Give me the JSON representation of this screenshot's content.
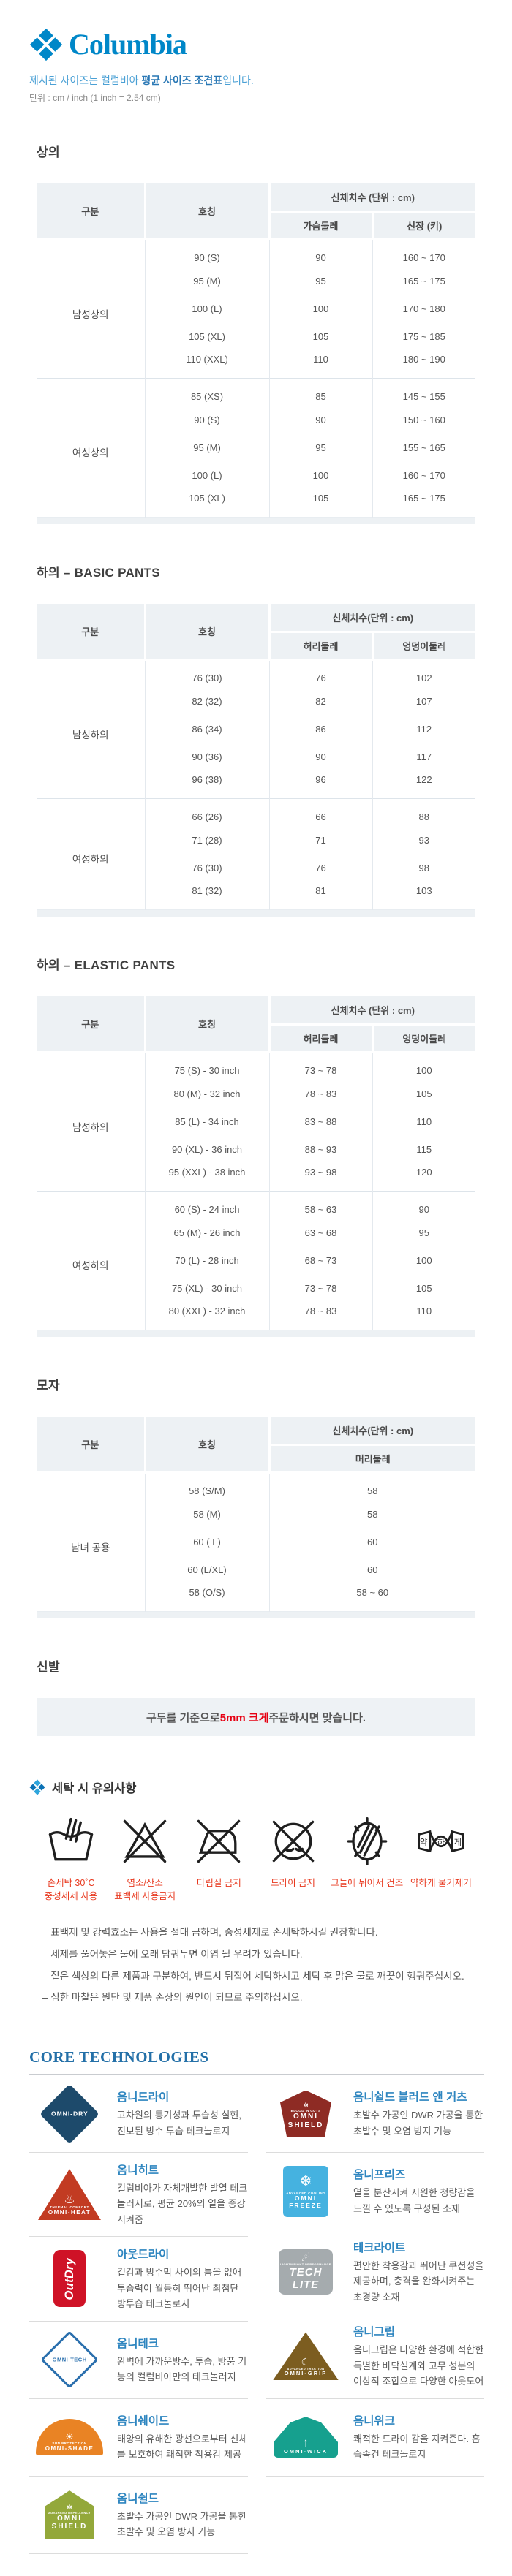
{
  "header": {
    "brand": "Columbia",
    "intro": {
      "pre": "제시된 사이즈는 컬럼비아 ",
      "bold": "평균 사이즈 조견표",
      "post": "입니다."
    },
    "unit_note": "단위 : cm / inch (1 inch = 2.54 cm)"
  },
  "tables": {
    "tops": {
      "section_title": "상의",
      "col_headers": {
        "group": "구분",
        "size": "호칭",
        "span": "신체치수 (단위 : cm)"
      },
      "sub_headers": [
        "가슴둘레",
        "신장 (키)"
      ],
      "groups": [
        {
          "label": "남성상의",
          "rows": [
            [
              "90 (S)",
              "90",
              "160 ~ 170"
            ],
            [
              "95 (M)",
              "95",
              "165 ~ 175"
            ],
            [
              "100 (L)",
              "100",
              "170 ~ 180"
            ],
            [
              "105 (XL)",
              "105",
              "175 ~ 185"
            ],
            [
              "110 (XXL)",
              "110",
              "180 ~ 190"
            ]
          ]
        },
        {
          "label": "여성상의",
          "rows": [
            [
              "85 (XS)",
              "85",
              "145 ~ 155"
            ],
            [
              "90 (S)",
              "90",
              "150 ~ 160"
            ],
            [
              "95 (M)",
              "95",
              "155 ~ 165"
            ],
            [
              "100 (L)",
              "100",
              "160 ~ 170"
            ],
            [
              "105 (XL)",
              "105",
              "165 ~ 175"
            ]
          ]
        }
      ]
    },
    "basic_pants": {
      "section_title": "하의 – BASIC PANTS",
      "col_headers": {
        "group": "구분",
        "size": "호칭",
        "span": "신체치수(단위 : cm)"
      },
      "sub_headers": [
        "허리둘레",
        "엉덩이둘레"
      ],
      "groups": [
        {
          "label": "남성하의",
          "rows": [
            [
              "76 (30)",
              "76",
              "102"
            ],
            [
              "82 (32)",
              "82",
              "107"
            ],
            [
              "86 (34)",
              "86",
              "112"
            ],
            [
              "90 (36)",
              "90",
              "117"
            ],
            [
              "96 (38)",
              "96",
              "122"
            ]
          ]
        },
        {
          "label": "여성하의",
          "rows": [
            [
              "66 (26)",
              "66",
              "88"
            ],
            [
              "71 (28)",
              "71",
              "93"
            ],
            [
              "76 (30)",
              "76",
              "98"
            ],
            [
              "81 (32)",
              "81",
              "103"
            ]
          ]
        }
      ]
    },
    "elastic_pants": {
      "section_title": "하의 – ELASTIC PANTS",
      "col_headers": {
        "group": "구분",
        "size": "호칭",
        "span": "신체치수 (단위 : cm)"
      },
      "sub_headers": [
        "허리둘레",
        "엉덩이둘레"
      ],
      "groups": [
        {
          "label": "남성하의",
          "rows": [
            [
              "75 (S) - 30 inch",
              "73 ~ 78",
              "100"
            ],
            [
              "80 (M) - 32 inch",
              "78 ~ 83",
              "105"
            ],
            [
              "85 (L) - 34 inch",
              "83 ~ 88",
              "110"
            ],
            [
              "90 (XL) - 36 inch",
              "88 ~ 93",
              "115"
            ],
            [
              "95 (XXL) - 38 inch",
              "93 ~ 98",
              "120"
            ]
          ]
        },
        {
          "label": "여성하의",
          "rows": [
            [
              "60 (S) - 24 inch",
              "58 ~ 63",
              "90"
            ],
            [
              "65 (M) - 26 inch",
              "63 ~ 68",
              "95"
            ],
            [
              "70 (L) - 28 inch",
              "68 ~ 73",
              "100"
            ],
            [
              "75 (XL) - 30 inch",
              "73 ~ 78",
              "105"
            ],
            [
              "80 (XXL) - 32 inch",
              "78 ~ 83",
              "110"
            ]
          ]
        }
      ]
    },
    "hats": {
      "section_title": "모자",
      "col_headers": {
        "group": "구분",
        "size": "호칭",
        "span": "신체치수(단위 : cm)"
      },
      "sub_headers": [
        "머리둘레"
      ],
      "groups": [
        {
          "label": "남녀 공용",
          "rows": [
            [
              "58 (S/M)",
              "58"
            ],
            [
              "58 (M)",
              "58"
            ],
            [
              "60 ( L)",
              "60"
            ],
            [
              "60 (L/XL)",
              "60"
            ],
            [
              "58 (O/S)",
              "58 ~ 60"
            ]
          ]
        }
      ]
    }
  },
  "shoes": {
    "section_title": "신발",
    "notice": {
      "pre": "구두를 기준으로 ",
      "red": "5mm 크게",
      "post": " 주문하시면 맞습니다."
    }
  },
  "laundry": {
    "title": "세탁 시 유의사항",
    "labels": [
      {
        "line1": "손세탁 30˚C",
        "line2": "중성세제 사용"
      },
      {
        "line1": "염소/산소",
        "line2": "표백제 사용금지"
      },
      {
        "line1": "다림질 금지",
        "line2": ""
      },
      {
        "line1": "드라이 금지",
        "line2": ""
      },
      {
        "line1": "그늘에 뉘어서 건조",
        "line2": ""
      },
      {
        "line1": "약하게 물기제거",
        "line2": ""
      }
    ],
    "wring_chars": [
      "약",
      "하",
      "게"
    ],
    "notes": [
      "– 표백제 및 강력효소는 사용을 절대 금하며, 중성세제로 손세탁하시길 권장합니다.",
      "– 세제를 풀어놓은 물에 오래 담궈두면 이염 될 우려가 있습니다.",
      "– 짙은 색상의 다른 제품과 구분하여, 반드시 뒤집어 세탁하시고 세탁 후 맑은 물로 깨끗이 헹궈주십시오.",
      "– 심한 마찰은 원단 및 제품 손상의 원인이 되므로 주의하십시오."
    ]
  },
  "core_technologies": {
    "title": "CORE TECHNOLOGIES",
    "columns": {
      "left": [
        {
          "title": "옴니드라이",
          "desc": "고차원의 통기성과 투습성 실현, 진보된 방수 투습 테크놀로지",
          "logo": {
            "type": "diamond-navy",
            "main": "OMNI-DRY",
            "sub": "",
            "glyph": ""
          }
        },
        {
          "title": "옴니히트",
          "desc": "컬럼비아가 자체개발한 발열 테크놀러지로, 평균 20%의 열을 증강시켜줌",
          "logo": {
            "type": "triangle-red",
            "main": "OMNI-HEAT",
            "sub": "THERMAL COMFORT",
            "glyph": "♨"
          }
        },
        {
          "title": "아웃드라이",
          "desc": "겉감과 방수막 사이의 틈을 없애 투습력이 월등히 뛰어난 최첨단 방투습 테크놀로지",
          "logo": {
            "type": "outdry-red",
            "main": "OutDry",
            "sub": "",
            "glyph": ""
          }
        },
        {
          "title": "옴니테크",
          "desc": "완벽에 가까운방수, 투습, 방풍 기능의 컬럼비아만의 테크놀러지",
          "logo": {
            "type": "diamond-outline-blue",
            "main": "OMNI-TECH",
            "sub": "",
            "glyph": ""
          }
        },
        {
          "title": "옴니쉐이드",
          "desc": "태양의 유해한 광선으로부터 신체를 보호하여 쾌적한 착용감 제공",
          "logo": {
            "type": "halfsun-orange",
            "main": "OMNI-SHADE",
            "sub": "SUN PROTECTION",
            "glyph": "☀"
          }
        },
        {
          "title": "옴니쉴드",
          "desc": "초발수 가공인 DWR 가공을 통한 초발수 및 오염 방지 기능",
          "logo": {
            "type": "pentagon-green",
            "main": "OMNI\nSHIELD",
            "sub": "ADVANCED REPELLENCY",
            "glyph": "✻"
          }
        }
      ],
      "right": [
        {
          "title": "옴니쉴드 블러드 앤 거츠",
          "desc": "초발수 가공인 DWR 가공을 통한 초발수 및 오염 방지 기능",
          "logo": {
            "type": "shield-darkred",
            "main": "OMNI\nSHIELD",
            "sub": "BLOOD 'N GUTS",
            "glyph": "✻"
          }
        },
        {
          "title": "옴니프리즈",
          "desc": "열을 분산시켜 시원한 청량감을 느낄 수 있도록 구성된 소재",
          "logo": {
            "type": "square-lightblue",
            "main": "OMNI\nFREEZE",
            "sub": "ADVANCED COOLING",
            "glyph": "❄"
          }
        },
        {
          "title": "테크라이트",
          "desc": "편안한 착용감과 뛰어난 쿠션성을 제공하며, 충격을 완화시켜주는 초경량 소재",
          "logo": {
            "type": "square-gray",
            "main": "TECH\nLITE",
            "sub": "LIGHTWEIGHT PERFORMANCE",
            "glyph": "☄"
          }
        },
        {
          "title": "옴니그립",
          "desc": "옴니그립은 다양한 환경에 적합한 특별한 바닥설계와 고무 성분의 이상적 조합으로 다양한 아웃도어",
          "logo": {
            "type": "triangle-brown",
            "main": "OMNI-GRIP",
            "sub": "ADVANCED TRACTION",
            "glyph": "☾"
          }
        },
        {
          "title": "옴니위크",
          "desc": "쾌적한 드라이 감을 지켜준다. 흡습속건 테크놀로지",
          "logo": {
            "type": "mound-teal",
            "main": "OMNI-WICK",
            "sub": "",
            "glyph": "↑"
          }
        }
      ]
    }
  },
  "colors": {
    "brand_blue": "#0087c8",
    "accent_red": "#e60012",
    "laundry_label_red": "#e8391f",
    "table_header_bg": "#edf1f4",
    "core_title_blue": "#2470a8",
    "tech_title_blue": "#2f86c0"
  }
}
